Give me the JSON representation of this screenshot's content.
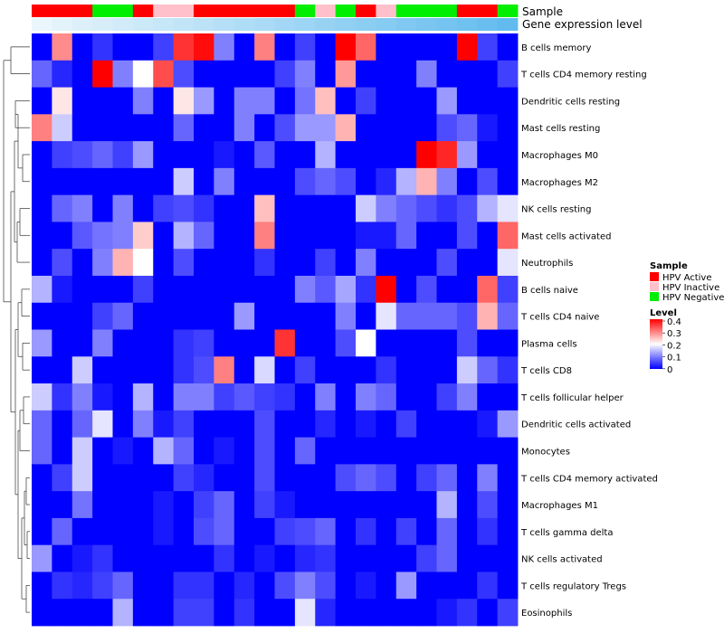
{
  "chart_data": {
    "type": "heatmap",
    "annotation_labels": [
      "Sample",
      "Gene expression level"
    ],
    "sample_annotation": [
      "HPV Active",
      "HPV Active",
      "HPV Active",
      "HPV Negative",
      "HPV Negative",
      "HPV Active",
      "HPV Inactive",
      "HPV Inactive",
      "HPV Active",
      "HPV Active",
      "HPV Active",
      "HPV Active",
      "HPV Active",
      "HPV Negative",
      "HPV Inactive",
      "HPV Negative",
      "HPV Active",
      "HPV Inactive",
      "HPV Negative",
      "HPV Negative",
      "HPV Negative",
      "HPV Active",
      "HPV Active",
      "HPV Negative"
    ],
    "gene_expression_level": [
      0,
      0.05,
      0.09,
      0.13,
      0.17,
      0.21,
      0.25,
      0.29,
      0.33,
      0.37,
      0.41,
      0.45,
      0.5,
      0.54,
      0.58,
      0.62,
      0.66,
      0.7,
      0.74,
      0.78,
      0.82,
      0.86,
      0.9,
      0.95
    ],
    "row_labels": [
      "B cells memory",
      "T cells CD4 memory resting",
      "Dendritic cells resting",
      "Mast cells resting",
      "Macrophages M0",
      "Macrophages M2",
      "NK cells resting",
      "Mast cells activated",
      "Neutrophils",
      "B cells naive",
      "T cells CD4 naive",
      "Plasma cells",
      "T cells CD8",
      "T cells follicular helper",
      "Dendritic cells activated",
      "Monocytes",
      "T cells CD4 memory activated",
      "Macrophages M1",
      "T cells gamma delta",
      "NK cells activated",
      "T cells regulatory  Tregs",
      "Eosinophils"
    ],
    "values": [
      [
        0,
        0.29,
        0,
        0.04,
        0,
        0,
        0.05,
        0.36,
        0.39,
        0.1,
        0,
        0.3,
        0,
        0.05,
        0,
        0.4,
        0.32,
        0,
        0,
        0,
        0,
        0.4,
        0.05,
        0
      ],
      [
        0.08,
        0.03,
        0,
        0.4,
        0.1,
        0.2,
        0.34,
        0.06,
        0,
        0,
        0,
        0,
        0.05,
        0.1,
        0,
        0.28,
        0,
        0,
        0,
        0.1,
        0,
        0,
        0,
        0.05
      ],
      [
        0,
        0.22,
        0,
        0,
        0,
        0.1,
        0,
        0.22,
        0.12,
        0,
        0.1,
        0.1,
        0,
        0.09,
        0.25,
        0,
        0.05,
        0,
        0,
        0,
        0.12,
        0,
        0,
        0
      ],
      [
        0.3,
        0.16,
        0,
        0,
        0,
        0,
        0,
        0.08,
        0,
        0,
        0.1,
        0,
        0.06,
        0.12,
        0.12,
        0.26,
        0,
        0,
        0,
        0,
        0.06,
        0.08,
        0.02,
        0
      ],
      [
        0,
        0.05,
        0.06,
        0.08,
        0.05,
        0.12,
        0,
        0,
        0,
        0.02,
        0,
        0.07,
        0,
        0,
        0.14,
        0,
        0,
        0,
        0,
        0.4,
        0.37,
        0.12,
        0,
        0
      ],
      [
        0,
        0,
        0,
        0,
        0,
        0,
        0,
        0.16,
        0,
        0.1,
        0,
        0,
        0,
        0.06,
        0.08,
        0.06,
        0,
        0.03,
        0.14,
        0.26,
        0.1,
        0,
        0.06,
        0
      ],
      [
        0,
        0.08,
        0.1,
        0,
        0.1,
        0,
        0.05,
        0.06,
        0.04,
        0,
        0,
        0.25,
        0,
        0,
        0,
        0,
        0.16,
        0.1,
        0.08,
        0.06,
        0.04,
        0.06,
        0.14,
        0.18
      ],
      [
        0,
        0,
        0.07,
        0.09,
        0.1,
        0.24,
        0,
        0.14,
        0.08,
        0,
        0,
        0.3,
        0,
        0,
        0,
        0,
        0.02,
        0.02,
        0.08,
        0,
        0,
        0.06,
        0,
        0.32
      ],
      [
        0,
        0.06,
        0,
        0.1,
        0.26,
        0.2,
        0,
        0.06,
        0,
        0,
        0,
        0.04,
        0,
        0,
        0.05,
        0,
        0.1,
        0,
        0,
        0,
        0.06,
        0,
        0,
        0.18
      ],
      [
        0.14,
        0.02,
        0,
        0,
        0,
        0.05,
        0,
        0,
        0,
        0,
        0,
        0,
        0,
        0.1,
        0.07,
        0.13,
        0.04,
        0.4,
        0,
        0.06,
        0,
        0,
        0.32,
        0.05
      ],
      [
        0,
        0,
        0,
        0.05,
        0.08,
        0,
        0,
        0,
        0,
        0,
        0.12,
        0,
        0,
        0,
        0,
        0.1,
        0,
        0.18,
        0.08,
        0.08,
        0.08,
        0.06,
        0.26,
        0.08
      ],
      [
        0.12,
        0,
        0,
        0.1,
        0,
        0,
        0,
        0.04,
        0.05,
        0,
        0,
        0,
        0.36,
        0,
        0,
        0.06,
        0.2,
        0,
        0,
        0,
        0,
        0.06,
        0,
        0
      ],
      [
        0,
        0,
        0.16,
        0,
        0,
        0,
        0,
        0.04,
        0.06,
        0.3,
        0,
        0.17,
        0,
        0.05,
        0,
        0,
        0,
        0.04,
        0,
        0,
        0,
        0.16,
        0.08,
        0.04
      ],
      [
        0.16,
        0.04,
        0.1,
        0.02,
        0,
        0.14,
        0,
        0.1,
        0.1,
        0.05,
        0.07,
        0.05,
        0.04,
        0,
        0.1,
        0,
        0.1,
        0.08,
        0,
        0,
        0.05,
        0.1,
        0,
        0
      ],
      [
        0.08,
        0,
        0.08,
        0.18,
        0,
        0.1,
        0.02,
        0.05,
        0,
        0,
        0,
        0.06,
        0,
        0,
        0.03,
        0,
        0.02,
        0,
        0.05,
        0,
        0,
        0,
        0.02,
        0.12
      ],
      [
        0.08,
        0,
        0.16,
        0,
        0.02,
        0,
        0.14,
        0.08,
        0,
        0.02,
        0,
        0.06,
        0,
        0.08,
        0,
        0,
        0,
        0,
        0,
        0,
        0,
        0,
        0,
        0
      ],
      [
        0,
        0.05,
        0.16,
        0,
        0,
        0,
        0,
        0.05,
        0.03,
        0,
        0,
        0.06,
        0,
        0,
        0,
        0.06,
        0.08,
        0.06,
        0,
        0.05,
        0.08,
        0,
        0.1,
        0
      ],
      [
        0,
        0,
        0.09,
        0,
        0,
        0,
        0.02,
        0,
        0.05,
        0.08,
        0,
        0.05,
        0.02,
        0,
        0,
        0,
        0,
        0,
        0,
        0,
        0.14,
        0,
        0.06,
        0
      ],
      [
        0,
        0.08,
        0,
        0,
        0,
        0,
        0.02,
        0,
        0.06,
        0.08,
        0,
        0,
        0.05,
        0.06,
        0.08,
        0,
        0.04,
        0,
        0.05,
        0,
        0.08,
        0,
        0.04,
        0
      ],
      [
        0.12,
        0,
        0.02,
        0.04,
        0,
        0,
        0,
        0,
        0,
        0.04,
        0,
        0.02,
        0,
        0.03,
        0.04,
        0,
        0,
        0,
        0,
        0.05,
        0.08,
        0,
        0,
        0
      ],
      [
        0,
        0.04,
        0.03,
        0.05,
        0.08,
        0,
        0,
        0.04,
        0.04,
        0,
        0.03,
        0,
        0.06,
        0.1,
        0.06,
        0,
        0.02,
        0,
        0.12,
        0,
        0,
        0,
        0.04,
        0
      ],
      [
        0,
        0,
        0,
        0,
        0.14,
        0,
        0,
        0.05,
        0.05,
        0,
        0.04,
        0,
        0,
        0.18,
        0.03,
        0,
        0,
        0,
        0,
        0,
        0.02,
        0.04,
        0,
        0.05
      ]
    ],
    "legend": {
      "sample_title": "Sample",
      "sample_entries": [
        {
          "label": "HPV Active",
          "color": "#ff0000"
        },
        {
          "label": "HPV Inactive",
          "color": "#ffc0cb"
        },
        {
          "label": "HPV Negative",
          "color": "#00ee00"
        }
      ],
      "level_title": "Level",
      "level_ticks": [
        "0.4",
        "0.3",
        "0.2",
        "0.1",
        "0"
      ],
      "level_range": [
        0,
        0.4
      ]
    },
    "colors": {
      "low": "#0000ff",
      "mid": "#ffffff",
      "high": "#ff0000",
      "expr_low": "#eaf6fb",
      "expr_high": "#5bb8ee"
    }
  }
}
